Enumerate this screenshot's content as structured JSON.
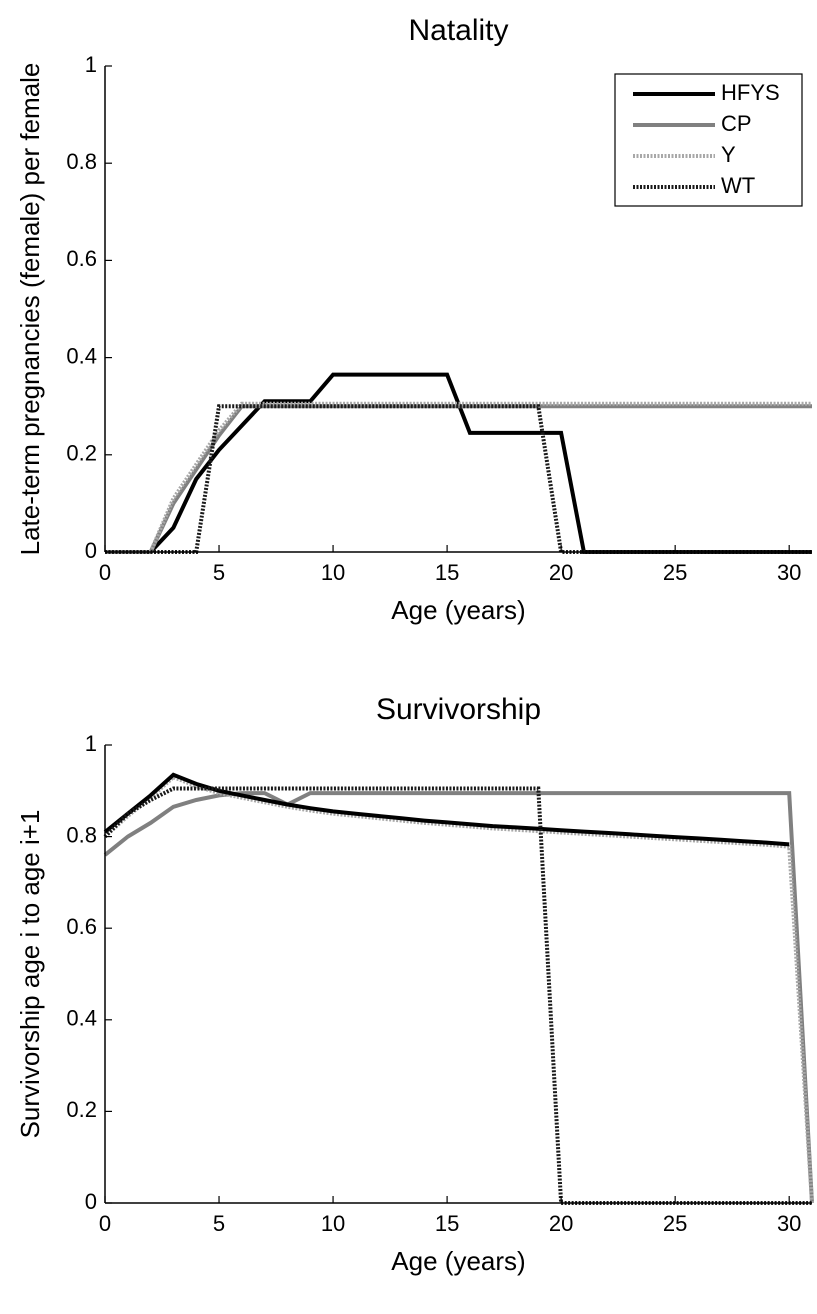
{
  "chart_data": [
    {
      "type": "line",
      "title": "Natality",
      "xlabel": "Age (years)",
      "ylabel": "Late-term pregnancies (female) per female",
      "x": [
        0,
        1,
        2,
        3,
        4,
        5,
        6,
        7,
        8,
        9,
        10,
        11,
        12,
        13,
        14,
        15,
        16,
        17,
        18,
        19,
        20,
        21,
        22,
        23,
        24,
        25,
        26,
        27,
        28,
        29,
        30,
        31
      ],
      "xlim": [
        0,
        31
      ],
      "ylim": [
        0,
        1
      ],
      "xticks": [
        0,
        5,
        10,
        15,
        20,
        25,
        30
      ],
      "yticks": [
        0,
        0.2,
        0.4,
        0.6,
        0.8,
        1
      ],
      "legend": "upper right",
      "series": [
        {
          "name": "HFYS",
          "color": "#000000",
          "style": "solid",
          "values": [
            0,
            0,
            0,
            0.05,
            0.15,
            0.21,
            0.26,
            0.31,
            0.31,
            0.31,
            0.365,
            0.365,
            0.365,
            0.365,
            0.365,
            0.365,
            0.245,
            0.245,
            0.245,
            0.245,
            0.245,
            0,
            0,
            0,
            0,
            0,
            0,
            0,
            0,
            0,
            0,
            0
          ]
        },
        {
          "name": "CP",
          "color": "#808080",
          "style": "solid",
          "values": [
            0,
            0,
            0,
            0.1,
            0.17,
            0.24,
            0.3,
            0.3,
            0.3,
            0.3,
            0.3,
            0.3,
            0.3,
            0.3,
            0.3,
            0.3,
            0.3,
            0.3,
            0.3,
            0.3,
            0.3,
            0.3,
            0.3,
            0.3,
            0.3,
            0.3,
            0.3,
            0.3,
            0.3,
            0.3,
            0.3,
            0.3
          ]
        },
        {
          "name": "Y",
          "color": "#a8a8a8",
          "style": "dotted",
          "values": [
            0,
            0,
            0,
            0.11,
            0.18,
            0.25,
            0.305,
            0.305,
            0.305,
            0.305,
            0.305,
            0.305,
            0.305,
            0.305,
            0.305,
            0.305,
            0.305,
            0.305,
            0.305,
            0.305,
            0.305,
            0.305,
            0.305,
            0.305,
            0.305,
            0.305,
            0.305,
            0.305,
            0.305,
            0.305,
            0.305,
            0.305
          ]
        },
        {
          "name": "WT",
          "color": "#1a1a1a",
          "style": "dotted",
          "values": [
            0,
            0,
            0,
            0,
            0,
            0.3,
            0.3,
            0.3,
            0.3,
            0.3,
            0.3,
            0.3,
            0.3,
            0.3,
            0.3,
            0.3,
            0.3,
            0.3,
            0.3,
            0.3,
            0,
            0,
            0,
            0,
            0,
            0,
            0,
            0,
            0,
            0,
            0,
            0
          ]
        }
      ]
    },
    {
      "type": "line",
      "title": "Survivorship",
      "xlabel": "Age (years)",
      "ylabel": "Survivorship age i to age i+1",
      "x": [
        0,
        1,
        2,
        3,
        4,
        5,
        6,
        7,
        8,
        9,
        10,
        11,
        12,
        13,
        14,
        15,
        16,
        17,
        18,
        19,
        20,
        21,
        22,
        23,
        24,
        25,
        26,
        27,
        28,
        29,
        30,
        31
      ],
      "xlim": [
        0,
        31
      ],
      "ylim": [
        0,
        1
      ],
      "xticks": [
        0,
        5,
        10,
        15,
        20,
        25,
        30
      ],
      "yticks": [
        0,
        0.2,
        0.4,
        0.6,
        0.8,
        1
      ],
      "series": [
        {
          "color": "#808080",
          "style": "solid",
          "values": [
            0.76,
            0.8,
            0.83,
            0.865,
            0.88,
            0.89,
            0.895,
            0.895,
            0.87,
            0.895,
            0.895,
            0.895,
            0.895,
            0.895,
            0.895,
            0.895,
            0.895,
            0.895,
            0.895,
            0.895,
            0.895,
            0.895,
            0.895,
            0.895,
            0.895,
            0.895,
            0.895,
            0.895,
            0.895,
            0.895,
            0.895,
            0
          ]
        },
        {
          "color": "#a8a8a8",
          "style": "dotted",
          "values": [
            0.8,
            0.845,
            0.885,
            0.93,
            0.91,
            0.895,
            0.885,
            0.875,
            0.865,
            0.857,
            0.85,
            0.845,
            0.84,
            0.835,
            0.83,
            0.826,
            0.822,
            0.818,
            0.815,
            0.812,
            0.809,
            0.806,
            0.803,
            0.8,
            0.797,
            0.794,
            0.791,
            0.788,
            0.785,
            0.782,
            0.778,
            0
          ]
        },
        {
          "color": "#000000",
          "style": "solid",
          "values": [
            0.81,
            0.85,
            0.89,
            0.935,
            0.915,
            0.9,
            0.89,
            0.88,
            0.87,
            0.862,
            0.855,
            0.85,
            0.845,
            0.84,
            0.835,
            0.831,
            0.827,
            0.823,
            0.82,
            0.817,
            0.814,
            0.811,
            0.808,
            0.805,
            0.802,
            0.799,
            0.796,
            0.793,
            0.79,
            0.787,
            0.783,
            null
          ]
        },
        {
          "color": "#1a1a1a",
          "style": "dotted",
          "values": [
            0.8,
            0.85,
            0.88,
            0.905,
            0.905,
            0.905,
            0.905,
            0.905,
            0.905,
            0.905,
            0.905,
            0.905,
            0.905,
            0.905,
            0.905,
            0.905,
            0.905,
            0.905,
            0.905,
            0.905,
            0,
            0,
            0,
            0,
            0,
            0,
            0,
            0,
            0,
            0,
            0,
            0
          ]
        }
      ]
    }
  ]
}
